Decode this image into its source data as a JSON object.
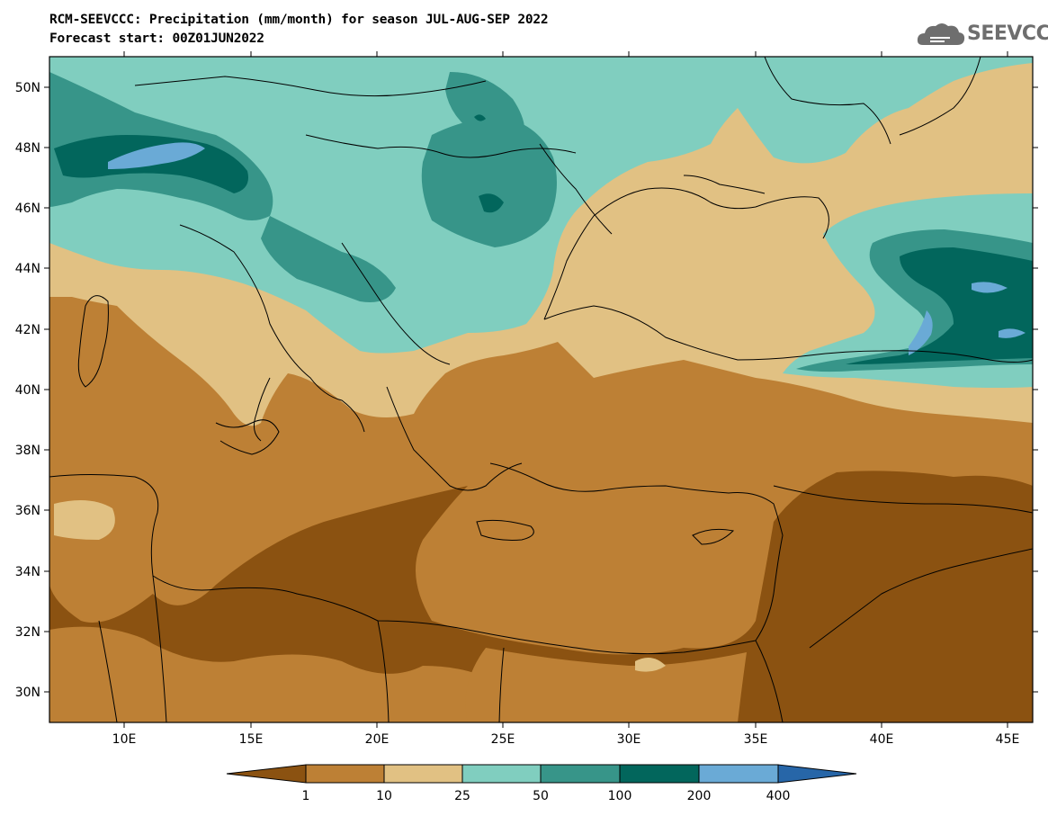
{
  "title_line1": "RCM-SEEVCCC: Precipitation (mm/month) for season JUL-AUG-SEP 2022",
  "title_line2": "Forecast start: 00Z01JUN2022",
  "logo_text": "SEEVCCC",
  "logo_icon": "cloud-icon",
  "map": {
    "lon_range": [
      7,
      46
    ],
    "lat_range": [
      29,
      51
    ],
    "lon_ticks": [
      "10E",
      "15E",
      "20E",
      "25E",
      "30E",
      "35E",
      "40E",
      "45E"
    ],
    "lat_ticks": [
      "50N",
      "48N",
      "46N",
      "44N",
      "42N",
      "40N",
      "38N",
      "36N",
      "34N",
      "32N",
      "30N"
    ]
  },
  "colorbar": {
    "labels": [
      "1",
      "10",
      "25",
      "50",
      "100",
      "200",
      "400"
    ],
    "colors": [
      "#8b5211",
      "#bd8035",
      "#e1c183",
      "#80cebf",
      "#379589",
      "#02665c",
      "#6aaad6",
      "#2766a8"
    ]
  }
}
